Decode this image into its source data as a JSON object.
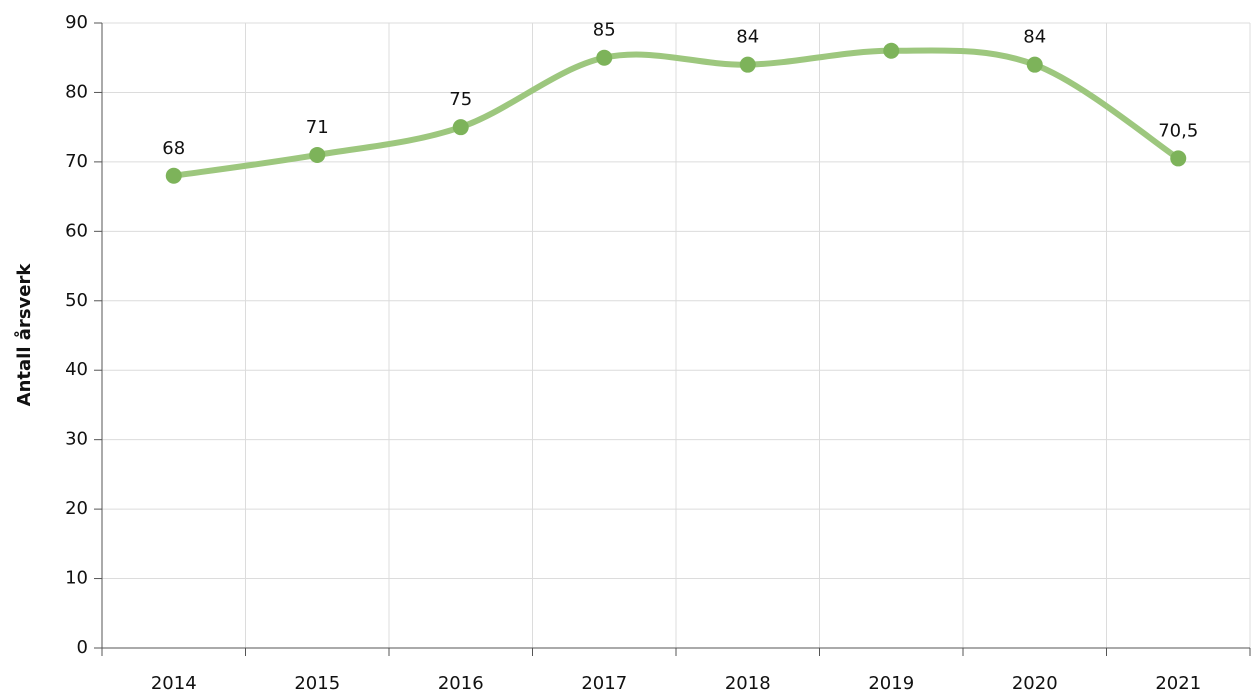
{
  "chart_data": {
    "type": "line",
    "ylabel": "Antall årsverk",
    "categories": [
      "2014",
      "2015",
      "2016",
      "2017",
      "2018",
      "2019",
      "2020",
      "2021"
    ],
    "series": [
      {
        "name": "Antall årsverk",
        "line_color": "#9dc77e",
        "color": "#7db35a",
        "values": [
          68,
          71,
          75,
          85,
          84,
          86,
          84,
          70.5
        ],
        "value_labels": [
          "68",
          "71",
          "75",
          "85",
          "84",
          null,
          "84",
          "70,5"
        ]
      }
    ],
    "ylim": [
      0,
      90
    ],
    "yticks": [
      0,
      10,
      20,
      30,
      40,
      50,
      60,
      70,
      80,
      90
    ],
    "grid": true,
    "smooth": true
  }
}
